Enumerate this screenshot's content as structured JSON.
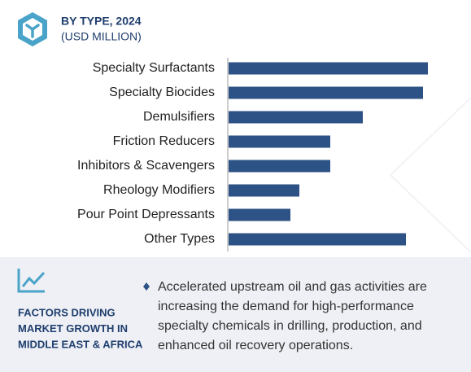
{
  "header": {
    "title": "BY TYPE, 2024",
    "subtitle": "(USD MILLION)"
  },
  "chart_data": {
    "type": "bar",
    "orientation": "horizontal",
    "categories": [
      "Specialty Surfactants",
      "Specialty Biocides",
      "Demulsifiers",
      "Friction Reducers",
      "Inhibitors & Scavengers",
      "Rheology Modifiers",
      "Pour Point Depressants",
      "Other Types"
    ],
    "values": [
      245,
      239,
      165,
      125,
      125,
      87,
      76,
      218
    ],
    "color": "#2d5285"
  },
  "factors": {
    "title": [
      "FACTORS DRIVING",
      "MARKET GROWTH IN",
      "MIDDLE EAST & AFRICA"
    ],
    "text": [
      "Accelerated upstream oil and gas activities are",
      "increasing the demand for high-performance",
      "specialty chemicals in drilling, production, and",
      "enhanced oil recovery operations."
    ]
  }
}
